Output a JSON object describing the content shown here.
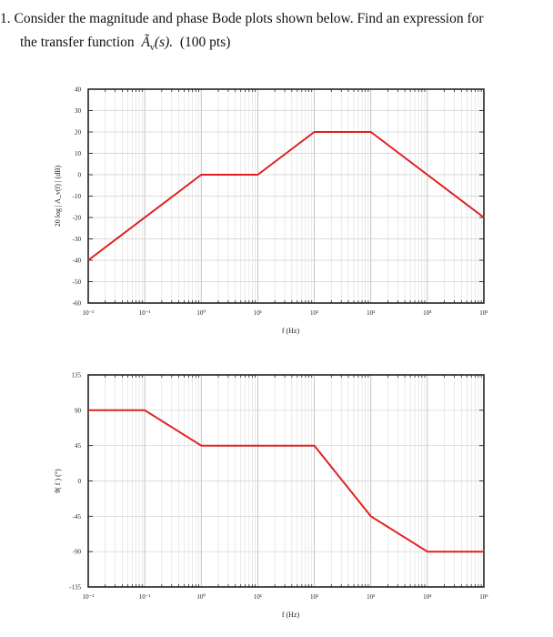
{
  "question": {
    "number": "1.",
    "line1": "Consider the magnitude and phase Bode plots shown below.  Find an expression for",
    "line2_text": "the transfer function",
    "line2_symbol": "Ã",
    "line2_subscript": "v",
    "line2_arg": "(s).",
    "line2_points": "(100 pts)"
  },
  "chart_data": [
    {
      "type": "line",
      "title": "",
      "xlabel": "f (Hz)",
      "ylabel": "20 log | A_v(f) | (dB)",
      "xscale": "log",
      "xlim": [
        0.01,
        100000
      ],
      "ylim": [
        -60,
        40
      ],
      "xtick_labels": [
        "10⁻²",
        "10⁻¹",
        "10⁰",
        "10¹",
        "10²",
        "10³",
        "10⁴",
        "10⁵"
      ],
      "xtick_values": [
        0.01,
        0.1,
        1,
        10,
        100,
        1000,
        10000,
        100000
      ],
      "ytick_labels": [
        "40",
        "30",
        "20",
        "10",
        "0",
        "-10",
        "-20",
        "-30",
        "-40",
        "-50",
        "-60"
      ],
      "ytick_values": [
        40,
        30,
        20,
        10,
        0,
        -10,
        -20,
        -30,
        -40,
        -50,
        -60
      ],
      "grid": true,
      "line_color": "#e02020",
      "series": [
        {
          "x": [
            0.01,
            1,
            10,
            100,
            1000,
            100000
          ],
          "y": [
            -40,
            0,
            0,
            20,
            20,
            -20
          ]
        }
      ]
    },
    {
      "type": "line",
      "title": "",
      "xlabel": "f (Hz)",
      "ylabel": "θ( f ) (°)",
      "xscale": "log",
      "xlim": [
        0.01,
        100000
      ],
      "ylim": [
        -135,
        135
      ],
      "xtick_labels": [
        "10⁻²",
        "10⁻¹",
        "10⁰",
        "10¹",
        "10²",
        "10³",
        "10⁴",
        "10⁵"
      ],
      "xtick_values": [
        0.01,
        0.1,
        1,
        10,
        100,
        1000,
        10000,
        100000
      ],
      "ytick_labels": [
        "135",
        "90",
        "45",
        "0",
        "-45",
        "-90",
        "-135"
      ],
      "ytick_values": [
        135,
        90,
        45,
        0,
        -45,
        -90,
        -135
      ],
      "grid": true,
      "line_color": "#e02020",
      "series": [
        {
          "x": [
            0.01,
            0.1,
            1,
            100,
            1000,
            10000,
            100000
          ],
          "y": [
            90,
            90,
            45,
            45,
            -45,
            -90,
            -90
          ]
        }
      ]
    }
  ]
}
